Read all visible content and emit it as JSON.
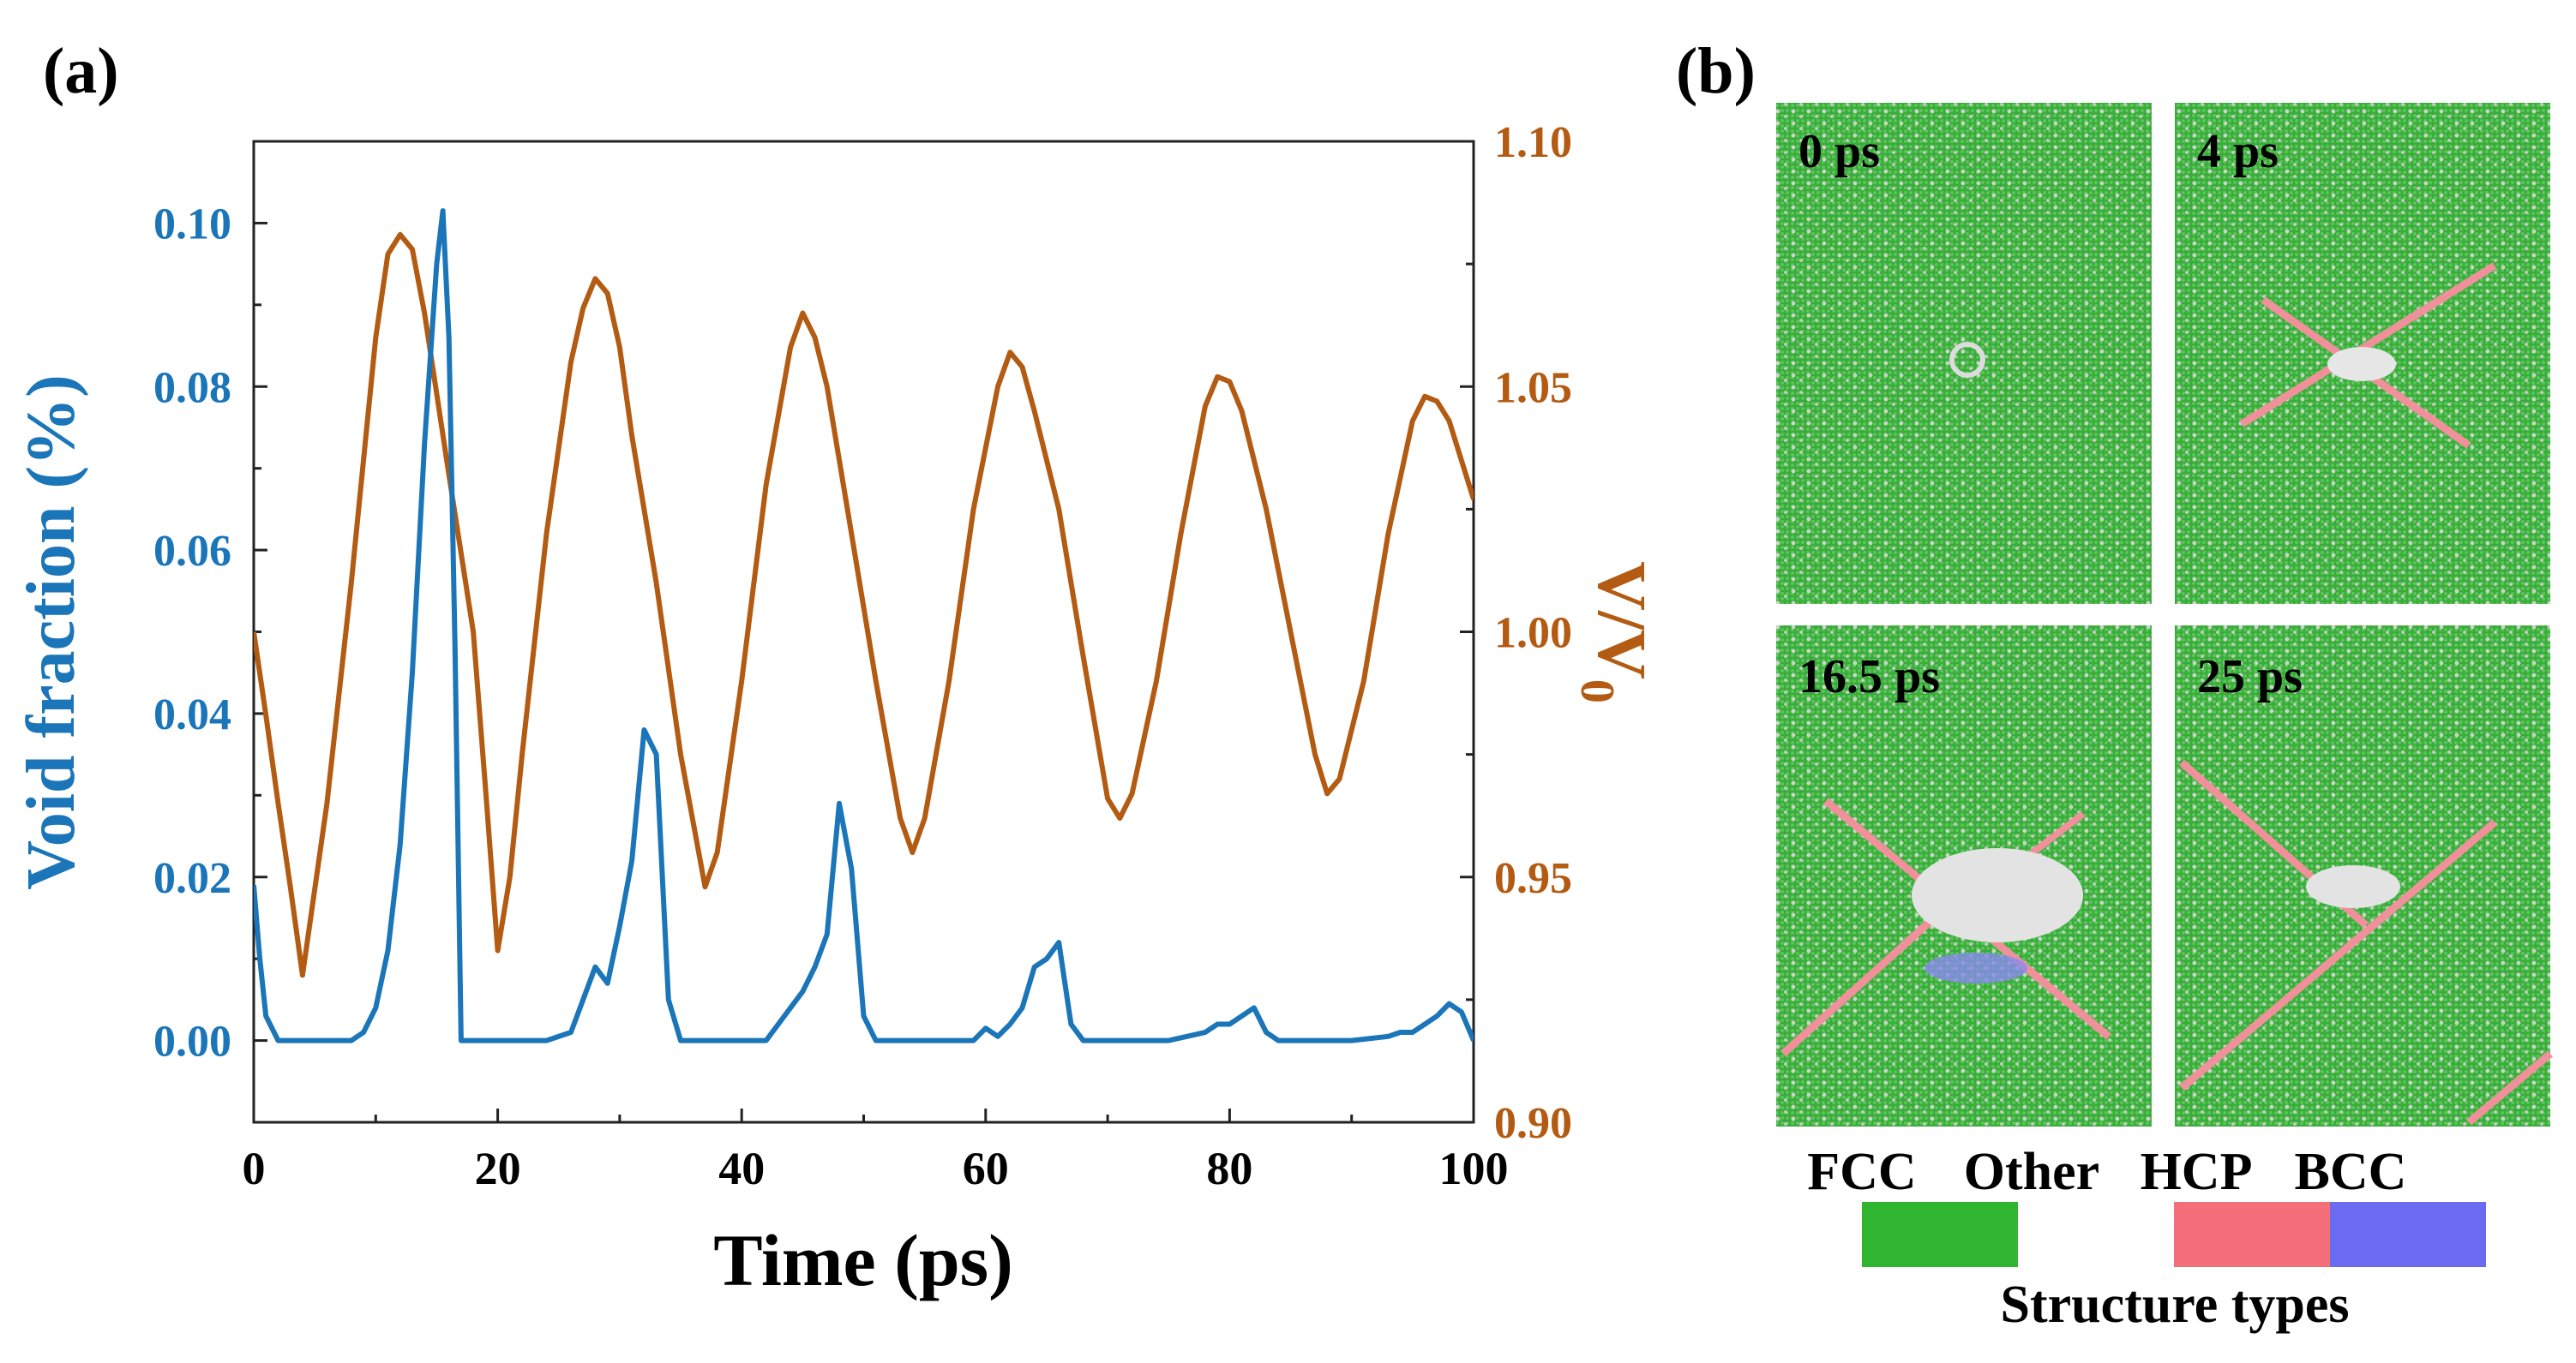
{
  "colors": {
    "void": "#1b75b9",
    "ratio": "#b35b12",
    "fcc": "#2fb52f",
    "other": "#ffffff",
    "hcp": "#f46f7a",
    "bcc": "#6b6bf2"
  },
  "panel_a": {
    "label": "(a)"
  },
  "panel_b": {
    "label": "(b)",
    "snapshots": [
      {
        "time": "0 ps"
      },
      {
        "time": "4 ps"
      },
      {
        "time": "16.5 ps"
      },
      {
        "time": "25 ps"
      }
    ],
    "legend": {
      "labels": [
        "FCC",
        "Other",
        "HCP",
        "BCC"
      ],
      "title": "Structure types"
    }
  },
  "chart_data": {
    "type": "line",
    "xlabel": "Time (ps)",
    "ylabel": "Void fraction (%)",
    "y2label": "V/V0",
    "y2label_main": "V/V",
    "y2label_sub": "0",
    "xlim": [
      0,
      100
    ],
    "ylim": [
      -0.01,
      0.11
    ],
    "y2lim": [
      0.9,
      1.1
    ],
    "xticks": [
      0,
      20,
      40,
      60,
      80,
      100
    ],
    "xtick_labels": [
      "0",
      "20",
      "40",
      "60",
      "80",
      "100"
    ],
    "yticks": [
      0.0,
      0.02,
      0.04,
      0.06,
      0.08,
      0.1
    ],
    "ytick_labels": [
      "0.00",
      "0.02",
      "0.04",
      "0.06",
      "0.08",
      "0.10"
    ],
    "y2ticks": [
      0.9,
      0.95,
      1.0,
      1.05,
      1.1
    ],
    "y2tick_labels": [
      "0.90",
      "0.95",
      "1.00",
      "1.05",
      "1.10"
    ],
    "series": [
      {
        "name": "Void fraction",
        "axis": "left",
        "x": [
          0,
          0.5,
          1,
          2,
          3,
          5,
          8,
          9,
          10,
          11,
          12,
          13,
          14,
          15,
          15.5,
          16,
          16.5,
          17,
          18,
          19,
          20,
          22,
          24,
          26,
          27,
          28,
          29,
          30,
          31,
          32,
          33,
          34,
          35,
          36,
          38,
          40,
          42,
          43,
          44,
          45,
          46,
          47,
          48,
          49,
          50,
          51,
          52,
          54,
          56,
          58,
          59,
          60,
          61,
          62,
          63,
          64,
          65,
          66,
          67,
          68,
          70,
          75,
          78,
          79,
          80,
          81,
          82,
          83,
          84,
          86,
          90,
          93,
          94,
          95,
          96,
          97,
          98,
          99,
          100
        ],
        "values": [
          0.019,
          0.01,
          0.003,
          0.0,
          0.0,
          0.0,
          0.0,
          0.001,
          0.004,
          0.011,
          0.024,
          0.045,
          0.073,
          0.095,
          0.1015,
          0.086,
          0.048,
          0.0,
          0.0,
          0.0,
          0.0,
          0.0,
          0.0,
          0.001,
          0.005,
          0.009,
          0.007,
          0.014,
          0.022,
          0.038,
          0.035,
          0.005,
          0.0,
          0.0,
          0.0,
          0.0,
          0.0,
          0.002,
          0.004,
          0.006,
          0.009,
          0.013,
          0.029,
          0.021,
          0.003,
          0.0,
          0.0,
          0.0,
          0.0,
          0.0,
          0.0,
          0.0015,
          0.0005,
          0.002,
          0.004,
          0.009,
          0.01,
          0.012,
          0.002,
          0.0,
          0.0,
          0.0,
          0.001,
          0.002,
          0.002,
          0.003,
          0.004,
          0.001,
          0.0,
          0.0,
          0.0,
          0.0005,
          0.001,
          0.001,
          0.002,
          0.003,
          0.0045,
          0.0035,
          0.0
        ]
      },
      {
        "name": "V/V0",
        "axis": "right",
        "x": [
          0,
          1,
          2,
          3,
          4,
          6,
          8,
          10,
          11,
          12,
          13,
          14,
          16,
          18,
          19,
          20,
          21,
          22,
          24,
          26,
          27,
          28,
          29,
          30,
          31,
          33,
          35,
          37,
          38,
          40,
          42,
          44,
          45,
          46,
          47,
          49,
          51,
          53,
          54,
          55,
          57,
          59,
          61,
          62,
          63,
          64,
          66,
          68,
          70,
          71,
          72,
          74,
          76,
          78,
          79,
          80,
          81,
          83,
          85,
          87,
          88,
          89,
          91,
          93,
          95,
          96,
          97,
          98,
          100
        ],
        "values": [
          1.0,
          0.983,
          0.965,
          0.948,
          0.93,
          0.965,
          1.01,
          1.06,
          1.077,
          1.081,
          1.078,
          1.065,
          1.032,
          1.0,
          0.968,
          0.935,
          0.95,
          0.975,
          1.02,
          1.055,
          1.066,
          1.072,
          1.069,
          1.058,
          1.04,
          1.01,
          0.975,
          0.948,
          0.955,
          0.99,
          1.03,
          1.058,
          1.065,
          1.06,
          1.05,
          1.02,
          0.99,
          0.962,
          0.955,
          0.962,
          0.99,
          1.025,
          1.05,
          1.057,
          1.054,
          1.045,
          1.025,
          0.995,
          0.966,
          0.962,
          0.967,
          0.99,
          1.02,
          1.046,
          1.052,
          1.051,
          1.045,
          1.025,
          1.0,
          0.975,
          0.967,
          0.97,
          0.99,
          1.02,
          1.043,
          1.048,
          1.047,
          1.043,
          1.027
        ]
      }
    ]
  }
}
